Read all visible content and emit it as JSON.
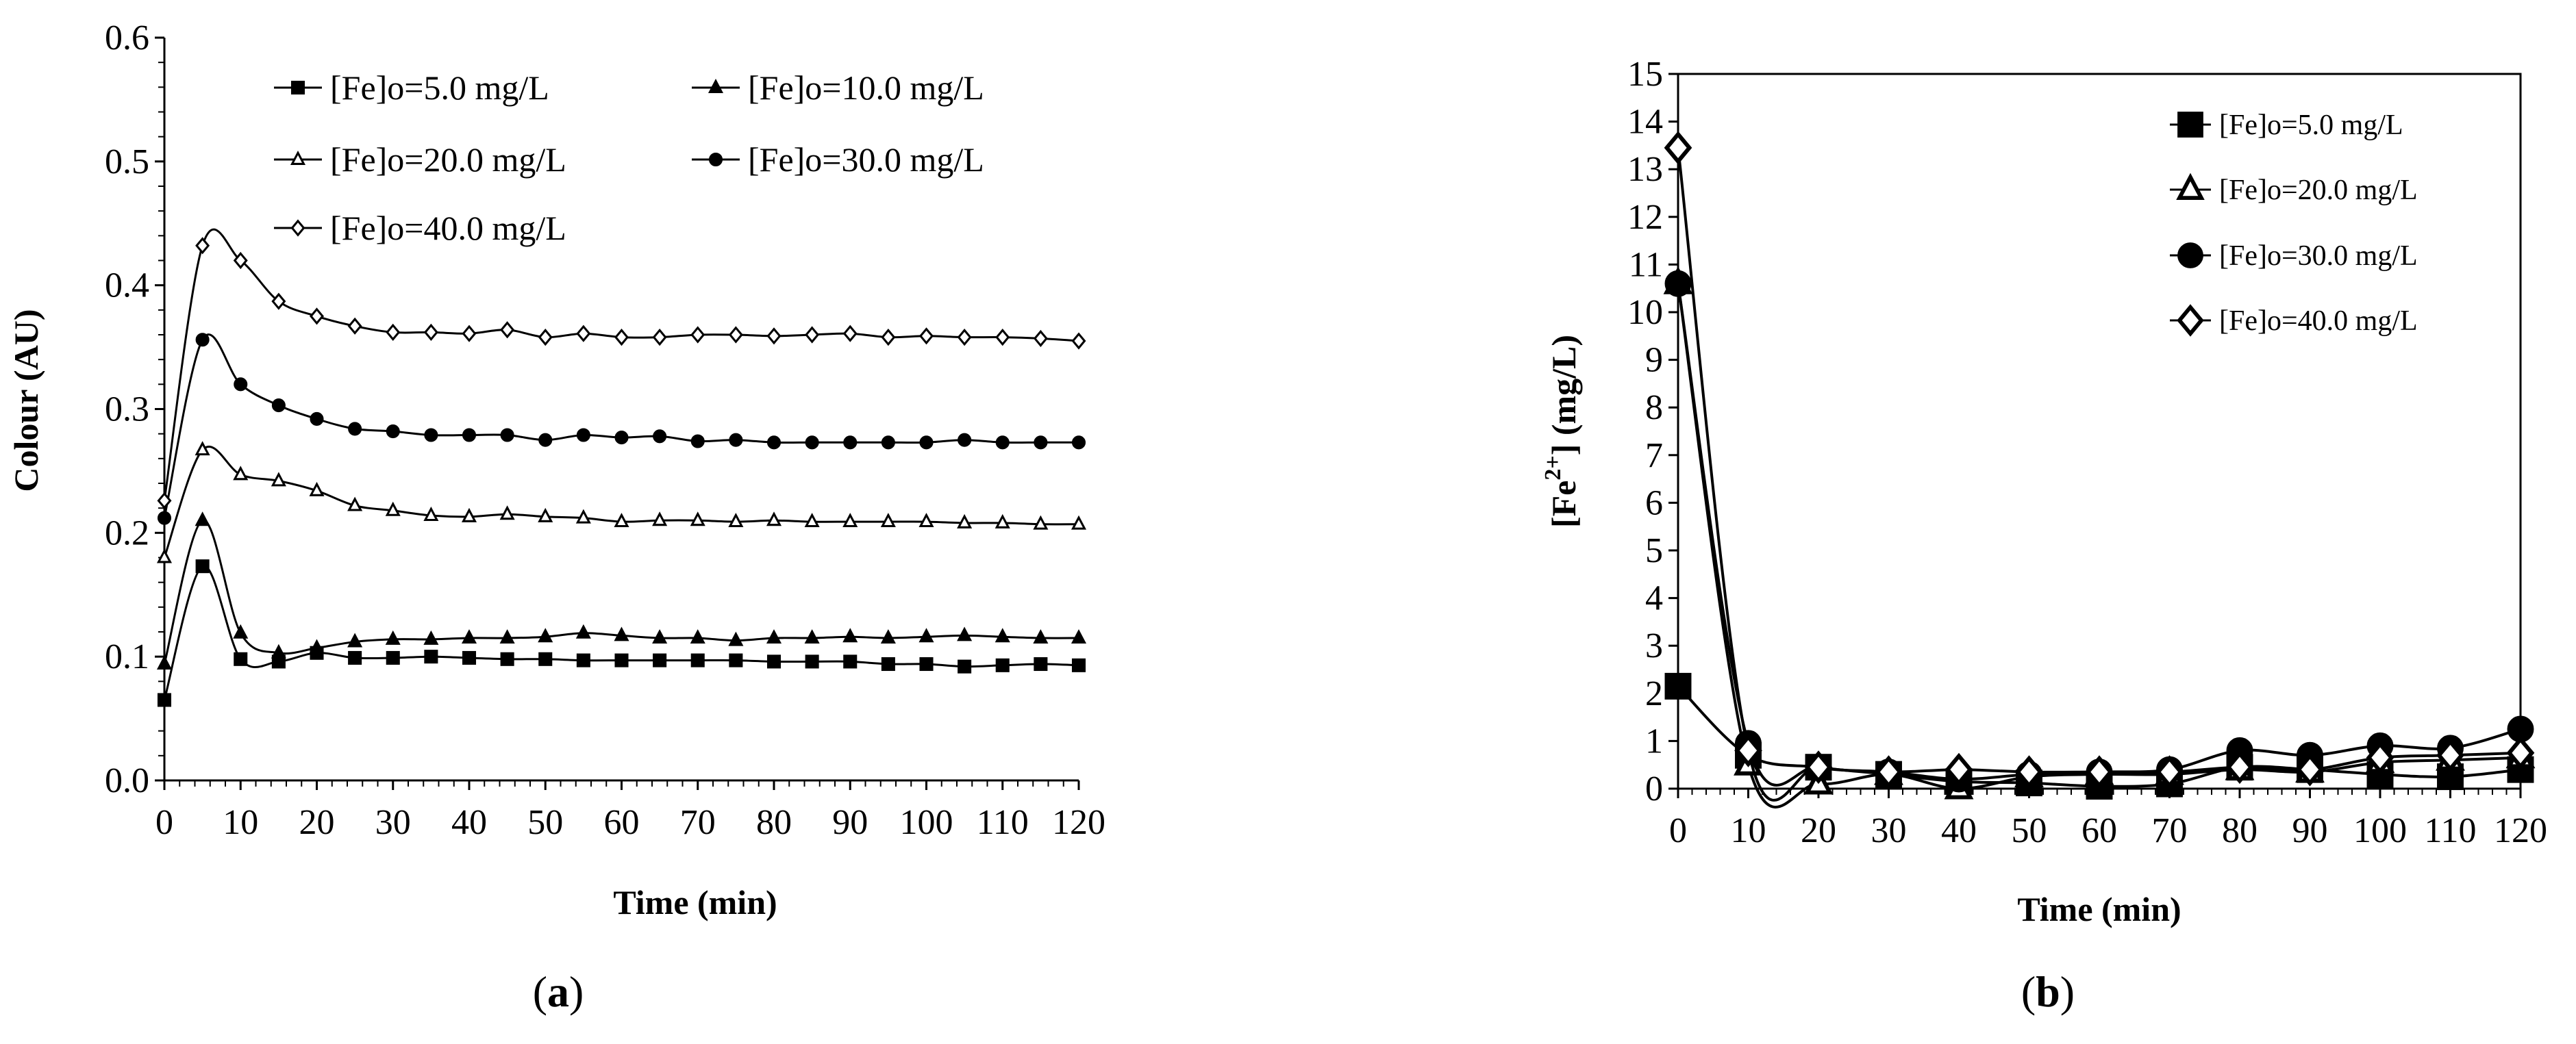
{
  "chart_data": [
    {
      "type": "line",
      "panel_label": {
        "open": "(",
        "letter": "a",
        "close": ")"
      },
      "xlabel": "Time (min)",
      "ylabel": "Colour (AU)",
      "xlim": [
        0,
        120
      ],
      "ylim": [
        0,
        0.6
      ],
      "xticks": [
        "0",
        "10",
        "20",
        "30",
        "40",
        "50",
        "60",
        "70",
        "80",
        "90",
        "100",
        "110",
        "120"
      ],
      "yticks": [
        "0.0",
        "0.1",
        "0.2",
        "0.3",
        "0.4",
        "0.5",
        "0.6"
      ],
      "legend_position": "top",
      "x": [
        0,
        5,
        10,
        15,
        20,
        25,
        30,
        35,
        40,
        45,
        50,
        55,
        60,
        65,
        70,
        75,
        80,
        85,
        90,
        95,
        100,
        105,
        110,
        115,
        120
      ],
      "series": [
        {
          "name": "[Fe]o=5.0 mg/L",
          "marker": "square-filled",
          "values": [
            0.065,
            0.173,
            0.098,
            0.096,
            0.103,
            0.099,
            0.099,
            0.1,
            0.099,
            0.098,
            0.098,
            0.097,
            0.097,
            0.097,
            0.097,
            0.097,
            0.096,
            0.096,
            0.096,
            0.094,
            0.094,
            0.092,
            0.093,
            0.094,
            0.093
          ]
        },
        {
          "name": "[Fe]o=10.0 mg/L",
          "marker": "triangle-filled",
          "values": [
            0.094,
            0.21,
            0.119,
            0.103,
            0.107,
            0.112,
            0.114,
            0.114,
            0.115,
            0.115,
            0.116,
            0.119,
            0.117,
            0.115,
            0.115,
            0.113,
            0.115,
            0.115,
            0.116,
            0.115,
            0.116,
            0.117,
            0.116,
            0.115,
            0.115
          ]
        },
        {
          "name": "[Fe]o=20.0 mg/L",
          "marker": "triangle-open",
          "values": [
            0.18,
            0.267,
            0.247,
            0.242,
            0.234,
            0.222,
            0.218,
            0.214,
            0.213,
            0.215,
            0.213,
            0.212,
            0.209,
            0.21,
            0.21,
            0.209,
            0.21,
            0.209,
            0.209,
            0.209,
            0.209,
            0.208,
            0.208,
            0.207,
            0.207
          ]
        },
        {
          "name": "[Fe]o=30.0 mg/L",
          "marker": "circle-filled",
          "values": [
            0.212,
            0.356,
            0.32,
            0.303,
            0.292,
            0.284,
            0.282,
            0.279,
            0.279,
            0.279,
            0.275,
            0.279,
            0.277,
            0.278,
            0.274,
            0.275,
            0.273,
            0.273,
            0.273,
            0.273,
            0.273,
            0.275,
            0.273,
            0.273,
            0.273
          ]
        },
        {
          "name": "[Fe]o=40.0 mg/L",
          "marker": "diamond-open",
          "values": [
            0.226,
            0.432,
            0.42,
            0.387,
            0.375,
            0.367,
            0.362,
            0.362,
            0.361,
            0.364,
            0.358,
            0.361,
            0.358,
            0.358,
            0.36,
            0.36,
            0.359,
            0.36,
            0.361,
            0.358,
            0.359,
            0.358,
            0.358,
            0.357,
            0.355
          ]
        }
      ]
    },
    {
      "type": "line",
      "panel_label": {
        "open": "(",
        "letter": "b",
        "close": ")"
      },
      "xlabel": "Time (min)",
      "ylabel": {
        "prefix": "[Fe",
        "superscript": "2+",
        "suffix": "] (mg/L)"
      },
      "xlim": [
        0,
        120
      ],
      "ylim": [
        0,
        15
      ],
      "xticks": [
        "0",
        "10",
        "20",
        "30",
        "40",
        "50",
        "60",
        "70",
        "80",
        "90",
        "100",
        "110",
        "120"
      ],
      "yticks": [
        "0",
        "1",
        "2",
        "3",
        "4",
        "5",
        "6",
        "7",
        "8",
        "9",
        "10",
        "11",
        "12",
        "13",
        "14",
        "15"
      ],
      "legend_position": "top-right",
      "x": [
        0,
        10,
        20,
        30,
        40,
        50,
        60,
        70,
        80,
        90,
        100,
        110,
        120
      ],
      "series": [
        {
          "name": "[Fe]o=5.0 mg/L",
          "marker": "square-filled",
          "values": [
            2.15,
            0.7,
            0.45,
            0.3,
            0.15,
            0.12,
            0.05,
            0.1,
            0.45,
            0.4,
            0.3,
            0.25,
            0.4
          ]
        },
        {
          "name": "[Fe]o=20.0 mg/L",
          "marker": "triangle-open",
          "values": [
            10.6,
            0.5,
            0.1,
            0.3,
            0.0,
            0.25,
            0.3,
            0.3,
            0.4,
            0.35,
            0.55,
            0.6,
            0.65
          ]
        },
        {
          "name": "[Fe]o=30.0 mg/L",
          "marker": "circle-filled",
          "values": [
            10.6,
            0.95,
            0.45,
            0.35,
            0.2,
            0.3,
            0.35,
            0.4,
            0.8,
            0.7,
            0.9,
            0.85,
            1.25
          ]
        },
        {
          "name": "[Fe]o=40.0 mg/L",
          "marker": "diamond-open",
          "values": [
            13.45,
            0.8,
            0.45,
            0.35,
            0.4,
            0.35,
            0.35,
            0.35,
            0.45,
            0.4,
            0.65,
            0.7,
            0.75
          ]
        }
      ]
    }
  ]
}
